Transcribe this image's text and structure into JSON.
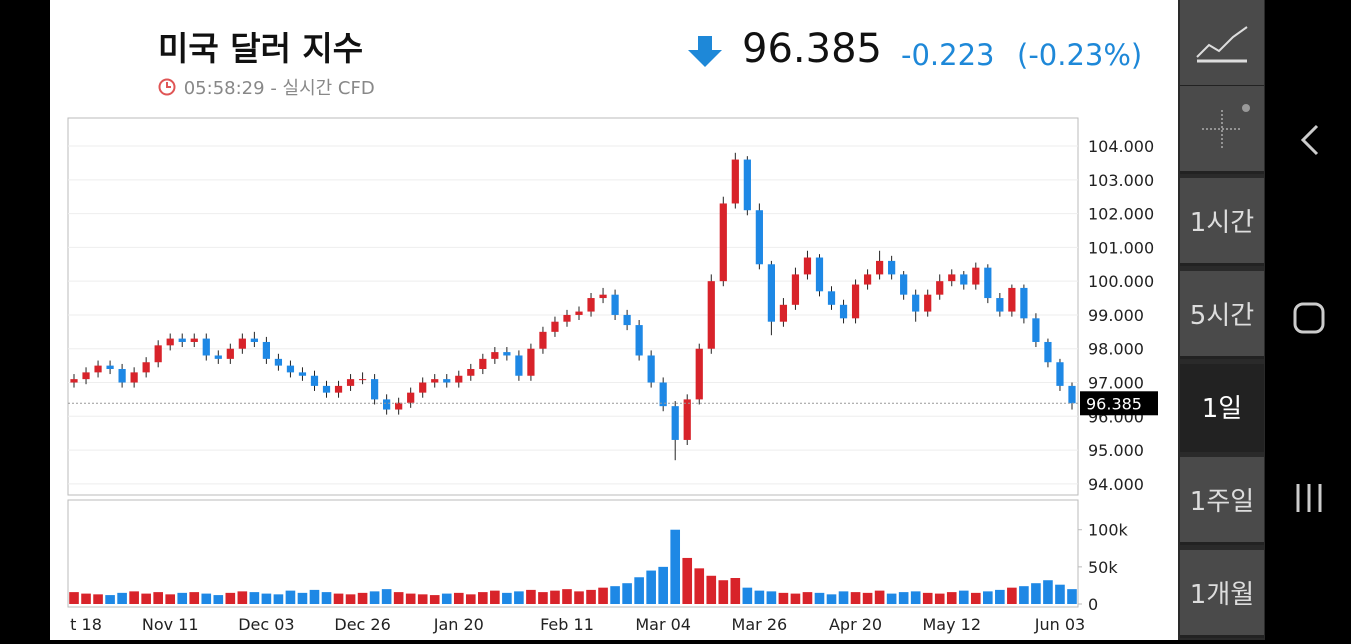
{
  "header": {
    "title": "미국 달러 지수",
    "time": "05:58:29",
    "source": "- 실시간 CFD",
    "price": "96.385",
    "change": "-0.223",
    "change_pct": "(-0.23%)"
  },
  "timeframes": [
    "1시간",
    "5시간",
    "1일",
    "1주일",
    "1개월"
  ],
  "chart_data": {
    "type": "candlestick",
    "categories": [
      null,
      "t 18",
      null,
      null,
      null,
      null,
      null,
      null,
      "Nov 11",
      null,
      null,
      null,
      null,
      null,
      null,
      null,
      "Dec 03",
      null,
      null,
      null,
      null,
      null,
      null,
      null,
      "Dec 26",
      null,
      null,
      null,
      null,
      null,
      null,
      null,
      "Jan 20",
      null,
      null,
      null,
      null,
      null,
      null,
      null,
      null,
      "Feb 11",
      null,
      null,
      null,
      null,
      null,
      null,
      null,
      "Mar 04",
      null,
      null,
      null,
      null,
      null,
      null,
      null,
      "Mar 26",
      null,
      null,
      null,
      null,
      null,
      null,
      null,
      "Apr 20",
      null,
      null,
      null,
      null,
      null,
      null,
      null,
      "May 12",
      null,
      null,
      null,
      null,
      null,
      null,
      null,
      null,
      "Jun 03",
      null
    ],
    "open": [
      97.0,
      97.1,
      97.3,
      97.5,
      97.4,
      97.0,
      97.3,
      97.6,
      98.1,
      98.3,
      98.2,
      98.3,
      97.8,
      97.7,
      98.0,
      98.3,
      98.2,
      97.7,
      97.5,
      97.3,
      97.2,
      96.9,
      96.7,
      96.9,
      97.1,
      97.1,
      96.5,
      96.2,
      96.4,
      96.7,
      97.0,
      97.1,
      97.0,
      97.2,
      97.4,
      97.7,
      97.9,
      97.8,
      97.2,
      98.0,
      98.5,
      98.8,
      99.0,
      99.1,
      99.5,
      99.6,
      99.0,
      98.7,
      97.8,
      97.0,
      96.3,
      95.3,
      96.5,
      98.0,
      100.0,
      102.3,
      103.6,
      102.1,
      100.5,
      98.8,
      99.3,
      100.2,
      100.7,
      99.7,
      99.3,
      98.9,
      99.9,
      100.2,
      100.6,
      100.2,
      99.6,
      99.1,
      99.6,
      100.0,
      100.2,
      99.9,
      100.4,
      99.5,
      99.1,
      99.8,
      98.9,
      98.2,
      97.6,
      96.9
    ],
    "high": [
      97.25,
      97.45,
      97.65,
      97.65,
      97.55,
      97.45,
      97.75,
      98.25,
      98.45,
      98.45,
      98.45,
      98.45,
      97.95,
      98.15,
      98.45,
      98.5,
      98.35,
      97.85,
      97.65,
      97.45,
      97.35,
      97.05,
      97.05,
      97.25,
      97.3,
      97.25,
      96.65,
      96.55,
      96.85,
      97.15,
      97.25,
      97.25,
      97.35,
      97.55,
      97.85,
      98.05,
      98.05,
      97.95,
      98.15,
      98.65,
      98.95,
      99.15,
      99.25,
      99.65,
      99.8,
      99.75,
      99.15,
      98.85,
      97.95,
      97.15,
      96.45,
      96.65,
      98.15,
      100.2,
      102.5,
      103.8,
      103.7,
      102.3,
      100.6,
      99.5,
      100.4,
      100.9,
      100.8,
      99.85,
      99.45,
      100.05,
      100.35,
      100.9,
      100.75,
      100.3,
      99.75,
      99.75,
      100.2,
      100.35,
      100.3,
      100.55,
      100.5,
      99.65,
      99.9,
      99.9,
      99.05,
      98.3,
      97.7,
      97.0
    ],
    "low": [
      96.85,
      96.95,
      97.15,
      97.25,
      96.85,
      96.85,
      97.15,
      97.45,
      97.95,
      98.05,
      98.05,
      97.65,
      97.55,
      97.55,
      97.85,
      98.05,
      97.55,
      97.35,
      97.15,
      97.05,
      96.75,
      96.55,
      96.55,
      96.75,
      96.95,
      96.35,
      96.05,
      96.05,
      96.25,
      96.55,
      96.85,
      96.85,
      96.85,
      97.05,
      97.25,
      97.55,
      97.65,
      97.05,
      97.05,
      97.85,
      98.35,
      98.65,
      98.85,
      98.95,
      99.35,
      98.85,
      98.55,
      97.65,
      96.85,
      96.15,
      94.7,
      95.15,
      96.35,
      97.85,
      99.85,
      102.15,
      101.95,
      100.35,
      98.4,
      98.65,
      99.15,
      100.05,
      99.55,
      99.15,
      98.75,
      98.75,
      99.75,
      100.05,
      100.05,
      99.45,
      98.8,
      98.95,
      99.45,
      99.85,
      99.75,
      99.75,
      99.35,
      98.95,
      98.95,
      98.75,
      98.05,
      97.45,
      96.75,
      96.2
    ],
    "close": [
      97.1,
      97.3,
      97.5,
      97.4,
      97.0,
      97.3,
      97.6,
      98.1,
      98.3,
      98.2,
      98.3,
      97.8,
      97.7,
      98.0,
      98.3,
      98.2,
      97.7,
      97.5,
      97.3,
      97.2,
      96.9,
      96.7,
      96.9,
      97.1,
      97.1,
      96.5,
      96.2,
      96.4,
      96.7,
      97.0,
      97.1,
      97.0,
      97.2,
      97.4,
      97.7,
      97.9,
      97.8,
      97.2,
      98.0,
      98.5,
      98.8,
      99.0,
      99.1,
      99.5,
      99.6,
      99.0,
      98.7,
      97.8,
      97.0,
      96.3,
      95.3,
      96.5,
      98.0,
      100.0,
      102.3,
      103.6,
      102.1,
      100.5,
      98.8,
      99.3,
      100.2,
      100.7,
      99.7,
      99.3,
      98.9,
      99.9,
      100.2,
      100.6,
      100.2,
      99.6,
      99.1,
      99.6,
      100.0,
      100.2,
      99.9,
      100.4,
      99.5,
      99.1,
      99.8,
      98.9,
      98.2,
      97.6,
      96.9,
      96.385
    ],
    "ylim": [
      93.67,
      104.83
    ],
    "yticks": [
      {
        "value": 94,
        "label": "94.000"
      },
      {
        "value": 95,
        "label": "95.000"
      },
      {
        "value": 96,
        "label": "96.000"
      },
      {
        "value": 97,
        "label": "97.000"
      },
      {
        "value": 98,
        "label": "98.000"
      },
      {
        "value": 99,
        "label": "99.000"
      },
      {
        "value": 100,
        "label": "100.000"
      },
      {
        "value": 101,
        "label": "101.000"
      },
      {
        "value": 102,
        "label": "102.000"
      },
      {
        "value": 103,
        "label": "103.000"
      },
      {
        "value": 104,
        "label": "104.000"
      }
    ],
    "last_price": {
      "value": 96.385,
      "label": "96.385"
    },
    "up_color": "#d8232a",
    "down_color": "#1e88e5",
    "grid": true,
    "volume": {
      "values": [
        16000,
        14000,
        13000,
        12000,
        15000,
        17000,
        14000,
        16000,
        13000,
        15000,
        16000,
        14000,
        12000,
        15000,
        17000,
        16000,
        14000,
        13000,
        18000,
        15000,
        19000,
        16000,
        14000,
        13000,
        15000,
        17000,
        20000,
        16000,
        14000,
        13000,
        12000,
        14000,
        15000,
        13000,
        16000,
        18000,
        15000,
        17000,
        19000,
        16000,
        18000,
        20000,
        17000,
        19000,
        22000,
        24000,
        28000,
        36000,
        45000,
        50000,
        100000,
        62000,
        48000,
        38000,
        32000,
        35000,
        22000,
        18000,
        17000,
        15000,
        14000,
        16000,
        15000,
        13000,
        17000,
        16000,
        15000,
        18000,
        14000,
        16000,
        17000,
        15000,
        14000,
        16000,
        18000,
        15000,
        17000,
        19000,
        22000,
        24000,
        28000,
        32000,
        26000,
        20000
      ],
      "ylim": [
        0,
        140000
      ],
      "yticks": [
        0,
        {
          "value": 50000,
          "label": "50k"
        },
        {
          "value": 100000,
          "label": "100k"
        }
      ]
    }
  }
}
